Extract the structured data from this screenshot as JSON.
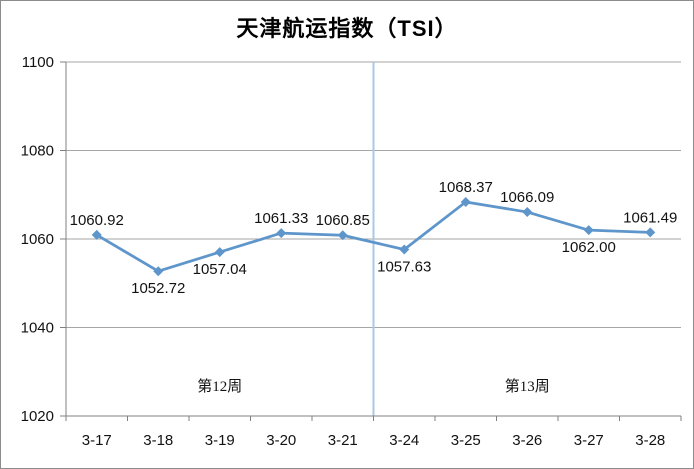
{
  "chart_data": {
    "type": "line",
    "title": "天津航运指数（TSI）",
    "categories": [
      "3-17",
      "3-18",
      "3-19",
      "3-20",
      "3-21",
      "3-24",
      "3-25",
      "3-26",
      "3-27",
      "3-28"
    ],
    "series": [
      {
        "name": "TSI",
        "values": [
          1060.92,
          1052.72,
          1057.04,
          1061.33,
          1060.85,
          1057.63,
          1068.37,
          1066.09,
          1062.0,
          1061.49
        ],
        "data_labels": [
          "1060.92",
          "1052.72",
          "1057.04",
          "1061.33",
          "1060.85",
          "1057.63",
          "1068.37",
          "1066.09",
          "1062.00",
          "1061.49"
        ],
        "label_position": [
          "above",
          "below",
          "below",
          "above",
          "above",
          "below",
          "above",
          "above",
          "below",
          "above"
        ]
      }
    ],
    "xlabel": "",
    "ylabel": "",
    "ylim": [
      1020,
      1100
    ],
    "yticks": [
      1020,
      1040,
      1060,
      1080,
      1100
    ],
    "grid": true,
    "legend": "none",
    "marker": "diamond",
    "annotations": [
      {
        "text": "第12周",
        "span": [
          0,
          4
        ]
      },
      {
        "text": "第13周",
        "span": [
          5,
          9
        ]
      }
    ],
    "divider_after_index": 4,
    "colors": {
      "series": "#5e96cb",
      "divider": "#a9c8e4",
      "gridline": "#a6a6a6",
      "axis": "#808080",
      "text": "#121212",
      "frame_border": "#8c8c8c",
      "background": "#ffffff"
    }
  }
}
